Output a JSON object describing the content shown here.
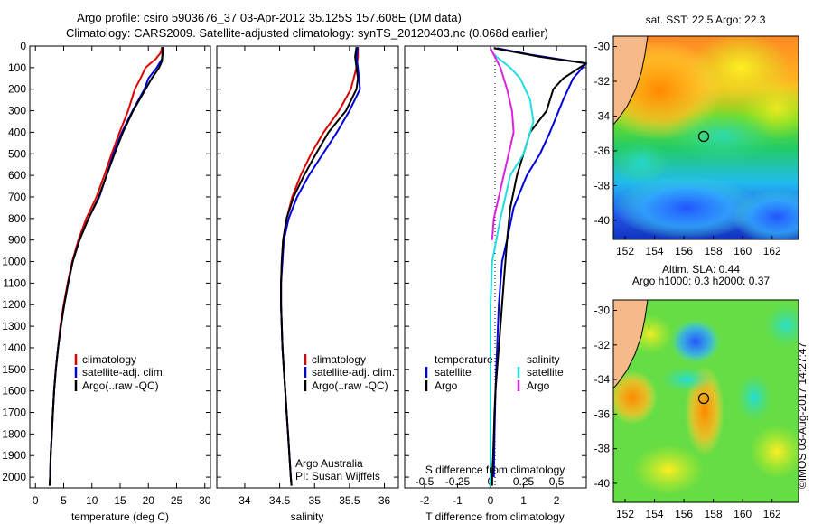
{
  "title_line1": "Argo profile: csiro 5903676_37 03-Apr-2012 35.125S 157.608E (DM data)",
  "title_line2": "Climatology: CARS2009. Satellite-adjusted climatology: synTS_20120403.nc (0.068d earlier)",
  "credit": "©IMOS 03-Aug-2017 14:27:47",
  "institution": "Argo Australia",
  "pi": "PI: Susan Wijffels",
  "colors": {
    "climatology": "#dd0000",
    "satellite": "#0000dd",
    "argo": "#000000",
    "sal_sat": "#22dddd",
    "sal_argo": "#dd22dd"
  },
  "chart_data": [
    {
      "type": "line",
      "xlabel": "temperature (deg C)",
      "xlim": [
        -1,
        31
      ],
      "ylim": [
        2050,
        0
      ],
      "x_ticks": [
        0,
        5,
        10,
        15,
        20,
        25,
        30
      ],
      "x_tick_labels": [
        "0",
        "5",
        "10",
        "15",
        "20",
        "25",
        "30"
      ],
      "y_ticks": [
        0,
        100,
        200,
        300,
        400,
        500,
        600,
        700,
        800,
        900,
        1000,
        1100,
        1200,
        1300,
        1400,
        1500,
        1600,
        1700,
        1800,
        1900,
        2000
      ],
      "y_tick_labels": [
        "0",
        "100",
        "200",
        "300",
        "400",
        "500",
        "600",
        "700",
        "800",
        "900",
        "1000",
        "1100",
        "1200",
        "1300",
        "1400",
        "1500",
        "1600",
        "1700",
        "1800",
        "1900",
        "2000"
      ],
      "legend": [
        "climatology",
        "satellite-adj. clim.",
        "Argo(..raw -QC)"
      ],
      "series": [
        {
          "name": "climatology",
          "color": "#dd0000",
          "points": [
            [
              22.4,
              5
            ],
            [
              22.2,
              30
            ],
            [
              21.3,
              60
            ],
            [
              19.5,
              100
            ],
            [
              18.6,
              150
            ],
            [
              17.6,
              200
            ],
            [
              16.4,
              300
            ],
            [
              14.9,
              400
            ],
            [
              13.5,
              500
            ],
            [
              12.2,
              600
            ],
            [
              10.8,
              700
            ],
            [
              9.0,
              800
            ],
            [
              7.6,
              900
            ],
            [
              6.5,
              1000
            ],
            [
              5.7,
              1100
            ],
            [
              5.0,
              1200
            ],
            [
              4.4,
              1300
            ],
            [
              4.0,
              1400
            ],
            [
              3.6,
              1500
            ],
            [
              3.3,
              1600
            ],
            [
              3.1,
              1700
            ],
            [
              2.9,
              1800
            ],
            [
              2.7,
              1900
            ],
            [
              2.6,
              2000
            ],
            [
              2.5,
              2040
            ]
          ]
        },
        {
          "name": "satellite-adj. clim.",
          "color": "#0000dd",
          "points": [
            [
              22.6,
              5
            ],
            [
              22.5,
              30
            ],
            [
              22.4,
              60
            ],
            [
              21.5,
              100
            ],
            [
              20.0,
              150
            ],
            [
              19.3,
              200
            ],
            [
              17.2,
              300
            ],
            [
              15.3,
              400
            ],
            [
              13.8,
              500
            ],
            [
              12.6,
              600
            ],
            [
              11.3,
              700
            ],
            [
              9.4,
              800
            ],
            [
              7.8,
              900
            ],
            [
              6.6,
              1000
            ],
            [
              5.8,
              1100
            ],
            [
              5.1,
              1200
            ],
            [
              4.5,
              1300
            ],
            [
              4.0,
              1400
            ],
            [
              3.6,
              1500
            ],
            [
              3.3,
              1600
            ],
            [
              3.1,
              1700
            ],
            [
              2.9,
              1800
            ],
            [
              2.7,
              1900
            ],
            [
              2.6,
              2000
            ],
            [
              2.5,
              2040
            ]
          ]
        },
        {
          "name": "Argo(..raw -QC)",
          "color": "#000000",
          "points": [
            [
              22.5,
              5
            ],
            [
              22.5,
              40
            ],
            [
              22.4,
              70
            ],
            [
              21.9,
              100
            ],
            [
              20.6,
              150
            ],
            [
              19.5,
              200
            ],
            [
              17.3,
              300
            ],
            [
              15.5,
              400
            ],
            [
              14.0,
              500
            ],
            [
              12.6,
              600
            ],
            [
              11.2,
              700
            ],
            [
              9.4,
              800
            ],
            [
              7.8,
              900
            ],
            [
              6.6,
              1000
            ],
            [
              5.8,
              1100
            ],
            [
              5.1,
              1200
            ],
            [
              4.5,
              1300
            ],
            [
              4.0,
              1400
            ],
            [
              3.6,
              1500
            ],
            [
              3.3,
              1600
            ],
            [
              3.1,
              1700
            ],
            [
              2.9,
              1800
            ],
            [
              2.7,
              1900
            ],
            [
              2.6,
              2000
            ],
            [
              2.5,
              2040
            ]
          ]
        }
      ]
    },
    {
      "type": "line",
      "xlabel": "salinity",
      "xlim": [
        33.6,
        36.2
      ],
      "ylim": [
        2050,
        0
      ],
      "x_ticks": [
        34,
        34.5,
        35,
        35.5,
        36
      ],
      "x_tick_labels": [
        "34",
        "34.5",
        "35",
        "35.5",
        "36"
      ],
      "legend": [
        "climatology",
        "satellite-adj. clim.",
        "Argo(..raw -QC)"
      ],
      "series": [
        {
          "name": "climatology",
          "color": "#dd0000",
          "points": [
            [
              35.62,
              5
            ],
            [
              35.62,
              50
            ],
            [
              35.6,
              100
            ],
            [
              35.52,
              200
            ],
            [
              35.35,
              300
            ],
            [
              35.13,
              400
            ],
            [
              34.95,
              500
            ],
            [
              34.8,
              600
            ],
            [
              34.68,
              700
            ],
            [
              34.6,
              800
            ],
            [
              34.55,
              900
            ],
            [
              34.53,
              1000
            ],
            [
              34.52,
              1100
            ],
            [
              34.52,
              1200
            ],
            [
              34.53,
              1300
            ],
            [
              34.54,
              1400
            ],
            [
              34.56,
              1500
            ],
            [
              34.58,
              1600
            ],
            [
              34.6,
              1700
            ],
            [
              34.62,
              1800
            ],
            [
              34.64,
              1900
            ],
            [
              34.66,
              2000
            ],
            [
              34.67,
              2040
            ]
          ]
        },
        {
          "name": "satellite-adj. clim.",
          "color": "#0000dd",
          "points": [
            [
              35.62,
              5
            ],
            [
              35.6,
              50
            ],
            [
              35.62,
              100
            ],
            [
              35.65,
              200
            ],
            [
              35.5,
              300
            ],
            [
              35.32,
              400
            ],
            [
              35.12,
              500
            ],
            [
              34.92,
              600
            ],
            [
              34.75,
              700
            ],
            [
              34.63,
              800
            ],
            [
              34.56,
              900
            ],
            [
              34.54,
              1000
            ],
            [
              34.52,
              1100
            ],
            [
              34.52,
              1200
            ],
            [
              34.53,
              1300
            ],
            [
              34.54,
              1400
            ],
            [
              34.56,
              1500
            ],
            [
              34.58,
              1600
            ],
            [
              34.6,
              1700
            ],
            [
              34.62,
              1800
            ],
            [
              34.64,
              1900
            ],
            [
              34.66,
              2000
            ],
            [
              34.67,
              2040
            ]
          ]
        },
        {
          "name": "Argo(..raw -QC)",
          "color": "#000000",
          "points": [
            [
              35.6,
              5
            ],
            [
              35.58,
              50
            ],
            [
              35.6,
              100
            ],
            [
              35.62,
              150
            ],
            [
              35.6,
              200
            ],
            [
              35.45,
              300
            ],
            [
              35.2,
              400
            ],
            [
              35.02,
              500
            ],
            [
              34.85,
              600
            ],
            [
              34.7,
              700
            ],
            [
              34.6,
              800
            ],
            [
              34.55,
              900
            ],
            [
              34.53,
              1000
            ],
            [
              34.52,
              1100
            ],
            [
              34.52,
              1200
            ],
            [
              34.53,
              1300
            ],
            [
              34.54,
              1400
            ],
            [
              34.56,
              1500
            ],
            [
              34.58,
              1600
            ],
            [
              34.6,
              1700
            ],
            [
              34.62,
              1800
            ],
            [
              34.64,
              1900
            ],
            [
              34.66,
              2000
            ],
            [
              34.67,
              2040
            ]
          ]
        }
      ]
    },
    {
      "type": "line",
      "xlabel": "T difference from climatology",
      "xlabel_top": "S difference from climatology",
      "xlim": [
        -2.6,
        2.9
      ],
      "ylim": [
        2050,
        0
      ],
      "x_ticks": [
        -2,
        -1,
        0,
        1,
        2
      ],
      "x_tick_labels": [
        "-2",
        "-1",
        "0",
        "1",
        "2"
      ],
      "x_ticks_top": [
        -0.5,
        -0.25,
        0,
        0.25,
        0.5
      ],
      "x_tick_labels_top": [
        "-0.5",
        "-0.25",
        "0",
        "0.25",
        "0.5"
      ],
      "legend": {
        "temperature_label": "temperature",
        "salinity_label": "salinity",
        "entries": [
          "satellite",
          "Argo",
          "satellite",
          "Argo"
        ]
      },
      "series": [
        {
          "name": "temperature satellite",
          "color": "#0000dd",
          "points": [
            [
              0.2,
              10
            ],
            [
              1.2,
              40
            ],
            [
              2.9,
              80
            ],
            [
              2.5,
              150
            ],
            [
              2.2,
              250
            ],
            [
              1.8,
              400
            ],
            [
              1.5,
              500
            ],
            [
              1.1,
              600
            ],
            [
              0.7,
              750
            ],
            [
              0.5,
              900
            ],
            [
              0.35,
              1000
            ],
            [
              0.25,
              1200
            ],
            [
              0.2,
              1400
            ],
            [
              0.15,
              1600
            ],
            [
              0.12,
              1800
            ],
            [
              0.1,
              2000
            ]
          ]
        },
        {
          "name": "temperature Argo",
          "color": "#000000",
          "points": [
            [
              0.1,
              10
            ],
            [
              1.5,
              50
            ],
            [
              2.9,
              80
            ],
            [
              2.2,
              150
            ],
            [
              1.9,
              200
            ],
            [
              1.7,
              300
            ],
            [
              1.2,
              400
            ],
            [
              0.8,
              600
            ],
            [
              0.6,
              750
            ],
            [
              0.5,
              900
            ],
            [
              0.45,
              1000
            ],
            [
              0.4,
              1100
            ],
            [
              0.35,
              1200
            ],
            [
              0.3,
              1300
            ],
            [
              0.25,
              1400
            ],
            [
              0.2,
              1500
            ],
            [
              0.15,
              1600
            ],
            [
              0.12,
              1700
            ],
            [
              0.1,
              1800
            ],
            [
              0.08,
              1900
            ],
            [
              0.05,
              2000
            ],
            [
              0.05,
              2040
            ]
          ]
        },
        {
          "name": "salinity satellite",
          "color": "#22dddd",
          "points": [
            [
              0.0,
              10
            ],
            [
              0.1,
              40
            ],
            [
              0.6,
              100
            ],
            [
              0.9,
              150
            ],
            [
              1.2,
              250
            ],
            [
              1.3,
              350
            ],
            [
              1.0,
              500
            ],
            [
              0.6,
              600
            ],
            [
              0.3,
              800
            ],
            [
              0.05,
              1000
            ],
            [
              0.0,
              1200
            ],
            [
              0.0,
              1500
            ],
            [
              0.0,
              1800
            ],
            [
              0.0,
              2040
            ]
          ]
        },
        {
          "name": "salinity Argo",
          "color": "#dd22dd",
          "points": [
            [
              0.0,
              10
            ],
            [
              0.3,
              100
            ],
            [
              0.5,
              200
            ],
            [
              0.65,
              300
            ],
            [
              0.7,
              400
            ],
            [
              0.55,
              500
            ],
            [
              0.4,
              600
            ],
            [
              0.25,
              700
            ],
            [
              0.1,
              800
            ],
            [
              0.05,
              900
            ]
          ]
        }
      ]
    }
  ],
  "maps": [
    {
      "title": "sat. SST: 22.5 Argo: 22.3",
      "lon_ticks": [
        152,
        154,
        156,
        158,
        160,
        162
      ],
      "lon_tick_labels": [
        "152",
        "154",
        "156",
        "158",
        "160",
        "162"
      ],
      "lat_ticks": [
        -30,
        -32,
        -34,
        -36,
        -38,
        -40
      ],
      "lat_tick_labels": [
        "-30",
        "-32",
        "-34",
        "-36",
        "-38",
        "-40"
      ],
      "lon_range": [
        151.2,
        163.8
      ],
      "lat_range": [
        -41.1,
        -29.4
      ],
      "marker": {
        "lon": 157.608,
        "lat": -35.125
      }
    },
    {
      "title_line1": "Altim. SLA: 0.44",
      "title_line2": "Argo h1000: 0.3 h2000: 0.37",
      "lon_ticks": [
        152,
        154,
        156,
        158,
        160,
        162
      ],
      "lon_tick_labels": [
        "152",
        "154",
        "156",
        "158",
        "160",
        "162"
      ],
      "lat_ticks": [
        -30,
        -32,
        -34,
        -36,
        -38,
        -40
      ],
      "lat_tick_labels": [
        "-30",
        "-32",
        "-34",
        "-36",
        "-38",
        "-40"
      ],
      "lon_range": [
        151.2,
        163.8
      ],
      "lat_range": [
        -41.1,
        -29.4
      ],
      "marker": {
        "lon": 157.608,
        "lat": -35.125
      }
    }
  ]
}
